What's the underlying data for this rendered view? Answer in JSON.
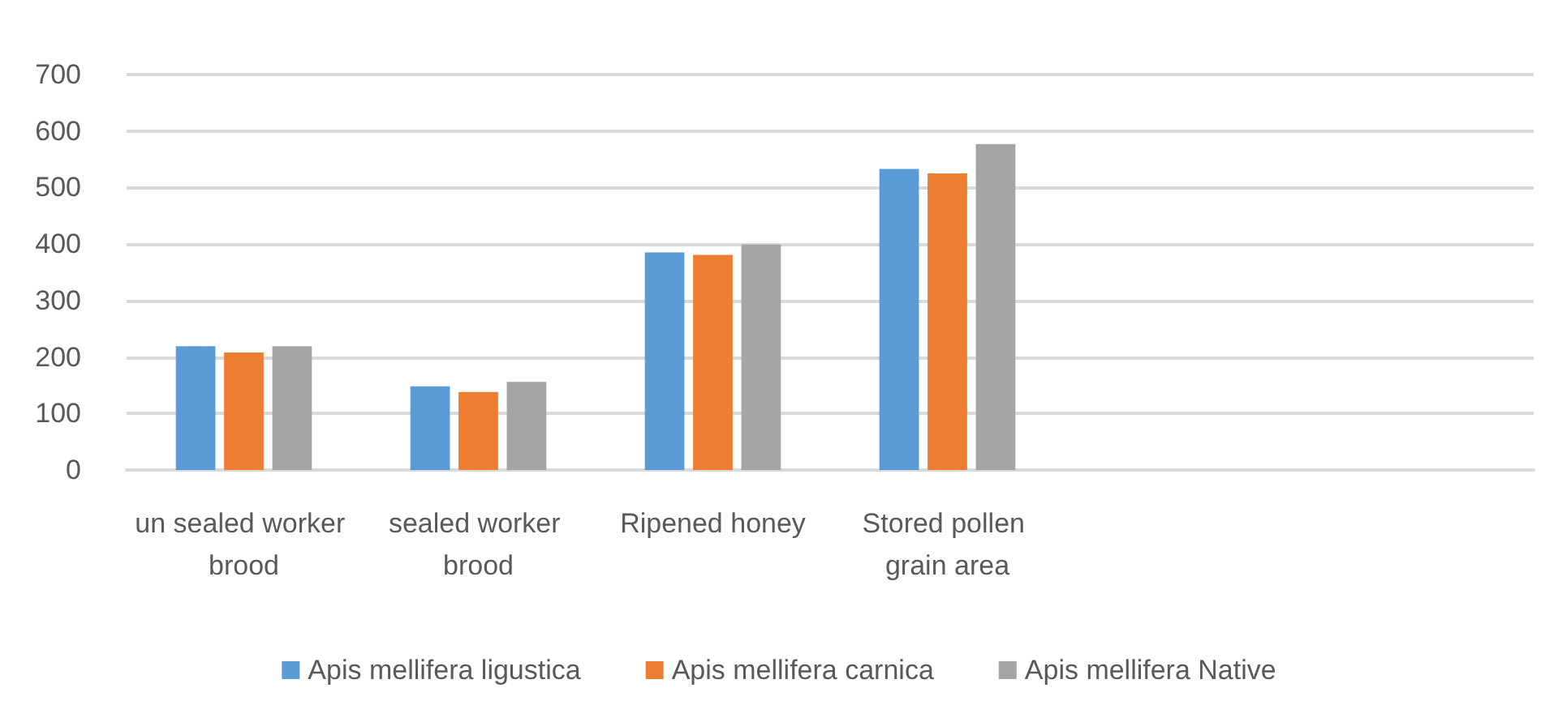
{
  "chart_data": {
    "type": "bar",
    "categories": [
      "un sealed worker brood",
      "sealed worker brood",
      "Ripened honey",
      "Stored pollen grain area",
      null,
      null
    ],
    "series": [
      {
        "name": "Apis mellifera ligustica",
        "color": "#5b9bd5",
        "values": [
          219,
          148,
          385,
          533,
          null,
          null
        ]
      },
      {
        "name": "Apis mellifera carnica",
        "color": "#ed7d31",
        "values": [
          208,
          138,
          381,
          525,
          null,
          null
        ]
      },
      {
        "name": "Apis mellifera Native",
        "color": "#a5a5a5",
        "values": [
          219,
          156,
          399,
          577,
          null,
          null
        ]
      }
    ],
    "ylim": [
      0,
      700
    ],
    "yticks": [
      0,
      100,
      200,
      300,
      400,
      500,
      600,
      700
    ],
    "grid": "y",
    "legend": "bottom"
  }
}
